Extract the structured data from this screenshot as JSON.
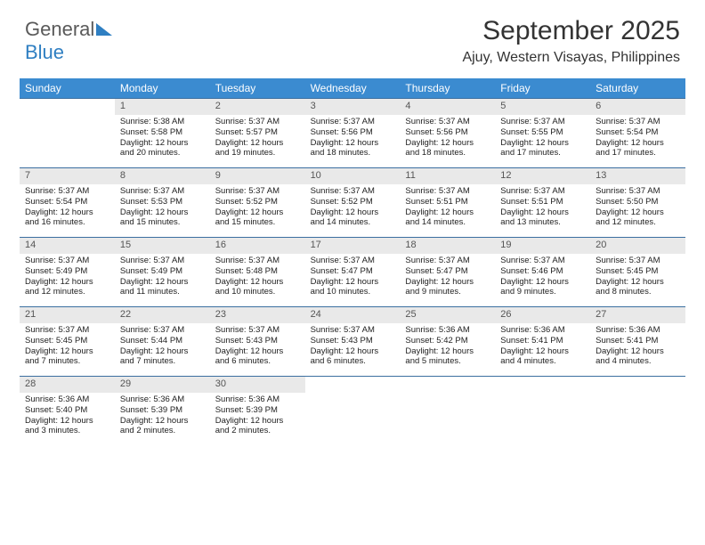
{
  "brand": {
    "part1": "General",
    "part2": "Blue"
  },
  "header": {
    "title": "September 2025",
    "location": "Ajuy, Western Visayas, Philippines"
  },
  "colors": {
    "header_bg": "#3b8bd0",
    "daynum_bg": "#e9e9e9",
    "rule": "#3b6fa0",
    "brand_blue": "#2f7fc2"
  },
  "days_of_week": [
    "Sunday",
    "Monday",
    "Tuesday",
    "Wednesday",
    "Thursday",
    "Friday",
    "Saturday"
  ],
  "first_weekday_index": 1,
  "days": [
    {
      "n": 1,
      "sunrise": "5:38 AM",
      "sunset": "5:58 PM",
      "daylight": "12 hours and 20 minutes."
    },
    {
      "n": 2,
      "sunrise": "5:37 AM",
      "sunset": "5:57 PM",
      "daylight": "12 hours and 19 minutes."
    },
    {
      "n": 3,
      "sunrise": "5:37 AM",
      "sunset": "5:56 PM",
      "daylight": "12 hours and 18 minutes."
    },
    {
      "n": 4,
      "sunrise": "5:37 AM",
      "sunset": "5:56 PM",
      "daylight": "12 hours and 18 minutes."
    },
    {
      "n": 5,
      "sunrise": "5:37 AM",
      "sunset": "5:55 PM",
      "daylight": "12 hours and 17 minutes."
    },
    {
      "n": 6,
      "sunrise": "5:37 AM",
      "sunset": "5:54 PM",
      "daylight": "12 hours and 17 minutes."
    },
    {
      "n": 7,
      "sunrise": "5:37 AM",
      "sunset": "5:54 PM",
      "daylight": "12 hours and 16 minutes."
    },
    {
      "n": 8,
      "sunrise": "5:37 AM",
      "sunset": "5:53 PM",
      "daylight": "12 hours and 15 minutes."
    },
    {
      "n": 9,
      "sunrise": "5:37 AM",
      "sunset": "5:52 PM",
      "daylight": "12 hours and 15 minutes."
    },
    {
      "n": 10,
      "sunrise": "5:37 AM",
      "sunset": "5:52 PM",
      "daylight": "12 hours and 14 minutes."
    },
    {
      "n": 11,
      "sunrise": "5:37 AM",
      "sunset": "5:51 PM",
      "daylight": "12 hours and 14 minutes."
    },
    {
      "n": 12,
      "sunrise": "5:37 AM",
      "sunset": "5:51 PM",
      "daylight": "12 hours and 13 minutes."
    },
    {
      "n": 13,
      "sunrise": "5:37 AM",
      "sunset": "5:50 PM",
      "daylight": "12 hours and 12 minutes."
    },
    {
      "n": 14,
      "sunrise": "5:37 AM",
      "sunset": "5:49 PM",
      "daylight": "12 hours and 12 minutes."
    },
    {
      "n": 15,
      "sunrise": "5:37 AM",
      "sunset": "5:49 PM",
      "daylight": "12 hours and 11 minutes."
    },
    {
      "n": 16,
      "sunrise": "5:37 AM",
      "sunset": "5:48 PM",
      "daylight": "12 hours and 10 minutes."
    },
    {
      "n": 17,
      "sunrise": "5:37 AM",
      "sunset": "5:47 PM",
      "daylight": "12 hours and 10 minutes."
    },
    {
      "n": 18,
      "sunrise": "5:37 AM",
      "sunset": "5:47 PM",
      "daylight": "12 hours and 9 minutes."
    },
    {
      "n": 19,
      "sunrise": "5:37 AM",
      "sunset": "5:46 PM",
      "daylight": "12 hours and 9 minutes."
    },
    {
      "n": 20,
      "sunrise": "5:37 AM",
      "sunset": "5:45 PM",
      "daylight": "12 hours and 8 minutes."
    },
    {
      "n": 21,
      "sunrise": "5:37 AM",
      "sunset": "5:45 PM",
      "daylight": "12 hours and 7 minutes."
    },
    {
      "n": 22,
      "sunrise": "5:37 AM",
      "sunset": "5:44 PM",
      "daylight": "12 hours and 7 minutes."
    },
    {
      "n": 23,
      "sunrise": "5:37 AM",
      "sunset": "5:43 PM",
      "daylight": "12 hours and 6 minutes."
    },
    {
      "n": 24,
      "sunrise": "5:37 AM",
      "sunset": "5:43 PM",
      "daylight": "12 hours and 6 minutes."
    },
    {
      "n": 25,
      "sunrise": "5:36 AM",
      "sunset": "5:42 PM",
      "daylight": "12 hours and 5 minutes."
    },
    {
      "n": 26,
      "sunrise": "5:36 AM",
      "sunset": "5:41 PM",
      "daylight": "12 hours and 4 minutes."
    },
    {
      "n": 27,
      "sunrise": "5:36 AM",
      "sunset": "5:41 PM",
      "daylight": "12 hours and 4 minutes."
    },
    {
      "n": 28,
      "sunrise": "5:36 AM",
      "sunset": "5:40 PM",
      "daylight": "12 hours and 3 minutes."
    },
    {
      "n": 29,
      "sunrise": "5:36 AM",
      "sunset": "5:39 PM",
      "daylight": "12 hours and 2 minutes."
    },
    {
      "n": 30,
      "sunrise": "5:36 AM",
      "sunset": "5:39 PM",
      "daylight": "12 hours and 2 minutes."
    }
  ],
  "labels": {
    "sunrise": "Sunrise: ",
    "sunset": "Sunset: ",
    "daylight": "Daylight: "
  }
}
